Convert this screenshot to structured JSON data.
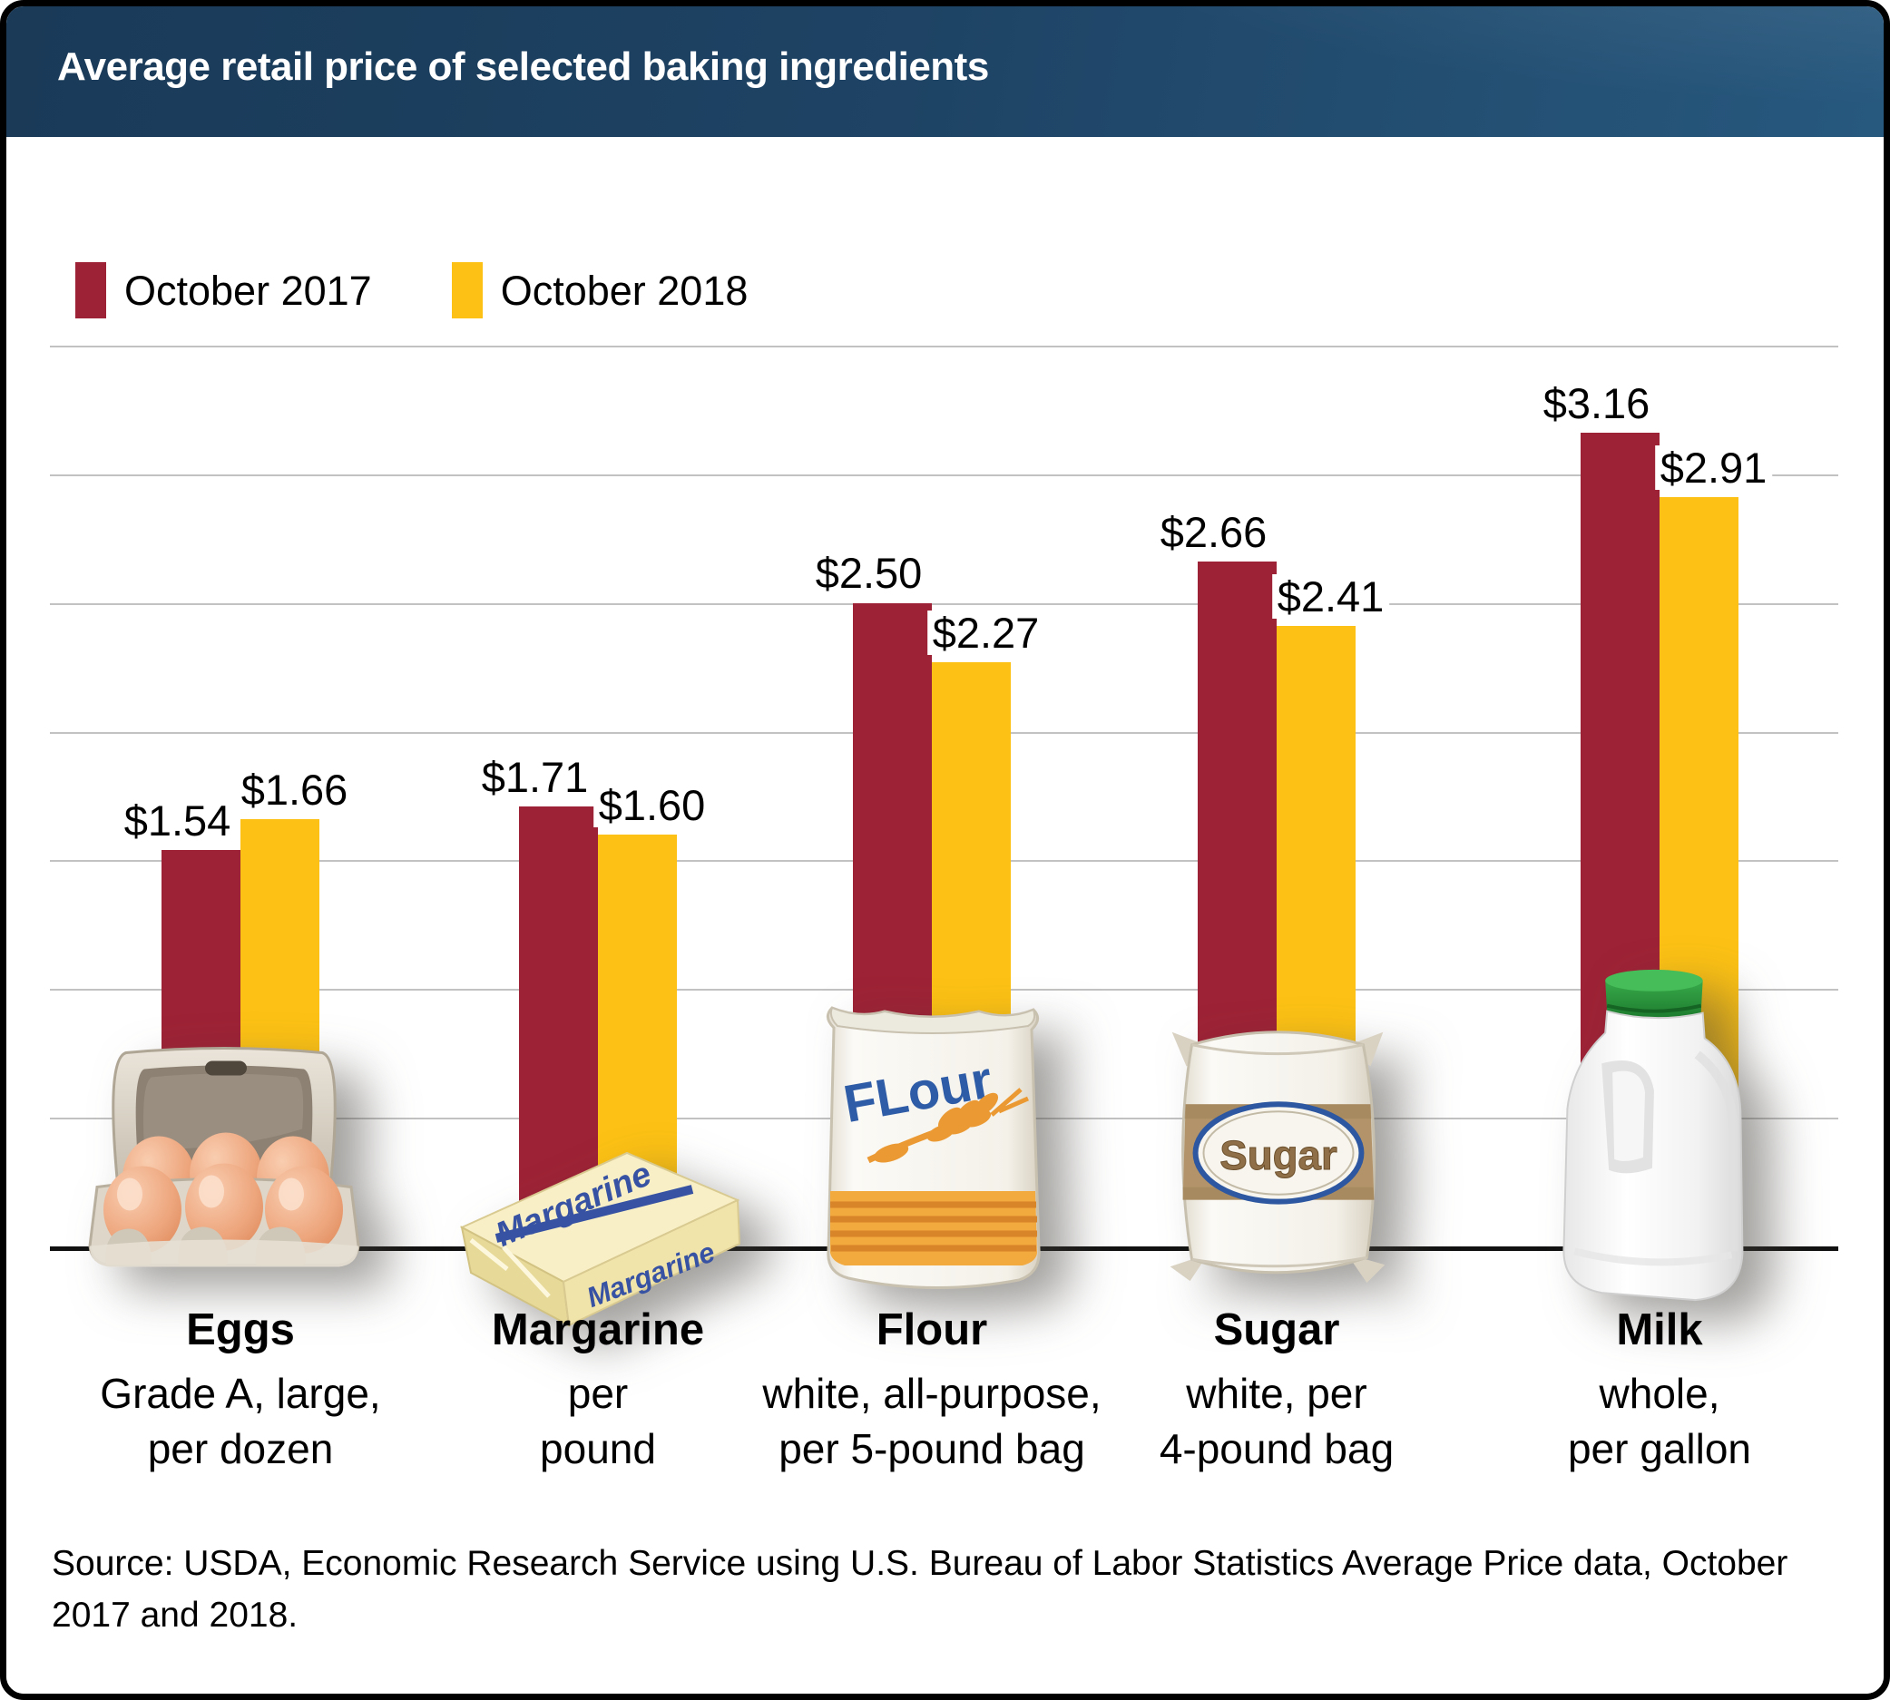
{
  "title": "Average retail price of selected baking ingredients",
  "legend": {
    "items": [
      {
        "label": "October 2017",
        "color": "#9D2235"
      },
      {
        "label": "October 2018",
        "color": "#FCC114"
      }
    ]
  },
  "source": "Source: USDA, Economic Research Service using U.S. Bureau of Labor Statistics Average Price data, October 2017 and 2018.",
  "chart_data": {
    "type": "bar",
    "title": "Average retail price of selected baking ingredients",
    "categories": [
      "Eggs",
      "Margarine",
      "Flour",
      "Sugar",
      "Milk"
    ],
    "category_descriptions": [
      [
        "Grade A, large,",
        "per dozen"
      ],
      [
        "per",
        "pound"
      ],
      [
        "white, all-purpose,",
        "per 5-pound bag"
      ],
      [
        "white, per",
        "4-pound bag"
      ],
      [
        "whole,",
        "per gallon"
      ]
    ],
    "series": [
      {
        "name": "October 2017",
        "color": "#9D2235",
        "values": [
          1.54,
          1.71,
          2.5,
          2.66,
          3.16
        ],
        "labels": [
          "$1.54",
          "$1.71",
          "$2.50",
          "$2.66",
          "$3.16"
        ]
      },
      {
        "name": "October 2018",
        "color": "#FCC114",
        "values": [
          1.66,
          1.6,
          2.27,
          2.41,
          2.91
        ],
        "labels": [
          "$1.66",
          "$1.60",
          "$2.27",
          "$2.41",
          "$2.91"
        ]
      }
    ],
    "xlabel": "",
    "ylabel": "",
    "ylim": [
      0,
      3.5
    ],
    "gridline_interval": 0.5,
    "grid": true,
    "legend_position": "top-left",
    "icons": [
      "egg-carton",
      "margarine-stick",
      "flour-bag",
      "sugar-bag",
      "milk-jug"
    ]
  },
  "colors": {
    "header_gradient_left": "#1A3A58",
    "header_gradient_right": "#27587E",
    "gridline": "#C2C2C2",
    "baseline": "#111111",
    "background": "#FFFFFF"
  }
}
